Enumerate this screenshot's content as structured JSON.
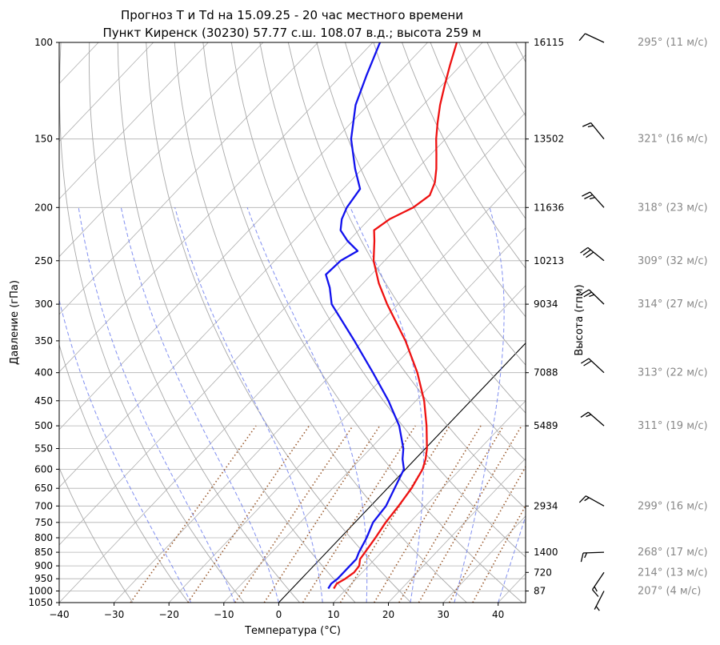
{
  "chart_data": {
    "type": "line",
    "title_line1": "Прогноз T и Td на 15.09.25 - 20 час местного времени",
    "title_line2": "Пункт Киренск (30230) 57.77 с.ш. 108.07 в.д.; высота 259 м",
    "xlabel": "Температура (°C)",
    "ylabel": "Давление (гПа)",
    "ylabel_right": "Высота (гпм)",
    "xlim": [
      -40,
      45
    ],
    "ylim": [
      1050,
      100
    ],
    "y_scale": "log",
    "x_ticks": [
      -40,
      -30,
      -20,
      -10,
      0,
      10,
      20,
      30,
      40
    ],
    "y_ticks": [
      100,
      150,
      200,
      250,
      300,
      350,
      400,
      450,
      500,
      550,
      600,
      650,
      700,
      750,
      800,
      850,
      900,
      950,
      1000,
      1050
    ],
    "height_ticks": [
      {
        "p": 100,
        "label": "16115"
      },
      {
        "p": 150,
        "label": "13502"
      },
      {
        "p": 200,
        "label": "11636"
      },
      {
        "p": 250,
        "label": "10213"
      },
      {
        "p": 300,
        "label": "9034"
      },
      {
        "p": 400,
        "label": "7088"
      },
      {
        "p": 500,
        "label": "5489"
      },
      {
        "p": 700,
        "label": "2934"
      },
      {
        "p": 850,
        "label": "1400"
      },
      {
        "p": 925,
        "label": "720"
      },
      {
        "p": 1000,
        "label": "87"
      }
    ],
    "grid": true,
    "series": [
      {
        "key": "temperature",
        "color": "#ee1111",
        "points": [
          [
            990,
            7.6
          ],
          [
            970,
            7.3
          ],
          [
            950,
            8.0
          ],
          [
            925,
            8.5
          ],
          [
            900,
            8.3
          ],
          [
            875,
            7.3
          ],
          [
            850,
            7.0
          ],
          [
            800,
            6.4
          ],
          [
            750,
            5.6
          ],
          [
            700,
            5.1
          ],
          [
            650,
            4.4
          ],
          [
            600,
            3.1
          ],
          [
            575,
            1.9
          ],
          [
            550,
            0.3
          ],
          [
            500,
            -3.7
          ],
          [
            450,
            -8.5
          ],
          [
            400,
            -14.6
          ],
          [
            350,
            -22.3
          ],
          [
            300,
            -32.0
          ],
          [
            275,
            -37.1
          ],
          [
            250,
            -42.0
          ],
          [
            230,
            -45.3
          ],
          [
            220,
            -47.2
          ],
          [
            210,
            -46.3
          ],
          [
            200,
            -44.0
          ],
          [
            190,
            -43.1
          ],
          [
            180,
            -44.4
          ],
          [
            170,
            -46.5
          ],
          [
            160,
            -49.0
          ],
          [
            150,
            -51.7
          ],
          [
            140,
            -54.3
          ],
          [
            130,
            -56.9
          ],
          [
            120,
            -59.4
          ],
          [
            110,
            -62.0
          ],
          [
            100,
            -64.7
          ]
        ]
      },
      {
        "key": "dewpoint",
        "color": "#1111ee",
        "points": [
          [
            990,
            6.6
          ],
          [
            970,
            6.3
          ],
          [
            950,
            6.6
          ],
          [
            925,
            6.6
          ],
          [
            900,
            6.6
          ],
          [
            875,
            6.6
          ],
          [
            850,
            5.9
          ],
          [
            800,
            4.8
          ],
          [
            750,
            3.3
          ],
          [
            700,
            2.8
          ],
          [
            650,
            1.3
          ],
          [
            600,
            -0.3
          ],
          [
            575,
            -2.3
          ],
          [
            550,
            -4.0
          ],
          [
            500,
            -8.7
          ],
          [
            450,
            -15.0
          ],
          [
            400,
            -22.7
          ],
          [
            350,
            -31.6
          ],
          [
            300,
            -42.1
          ],
          [
            280,
            -45.3
          ],
          [
            265,
            -48.3
          ],
          [
            250,
            -48.0
          ],
          [
            240,
            -46.6
          ],
          [
            230,
            -50.2
          ],
          [
            220,
            -53.3
          ],
          [
            210,
            -55.0
          ],
          [
            200,
            -56.1
          ],
          [
            185,
            -56.9
          ],
          [
            170,
            -61.3
          ],
          [
            150,
            -67.2
          ],
          [
            130,
            -72.3
          ],
          [
            115,
            -75.4
          ],
          [
            100,
            -78.7
          ]
        ]
      }
    ],
    "wind": [
      {
        "p": 100,
        "dir": 295,
        "speed": 11,
        "label": "295° (11 м/с)"
      },
      {
        "p": 150,
        "dir": 321,
        "speed": 16,
        "label": "321° (16 м/с)"
      },
      {
        "p": 200,
        "dir": 318,
        "speed": 23,
        "label": "318° (23 м/с)"
      },
      {
        "p": 250,
        "dir": 309,
        "speed": 32,
        "label": "309° (32 м/с)"
      },
      {
        "p": 300,
        "dir": 314,
        "speed": 27,
        "label": "314° (27 м/с)"
      },
      {
        "p": 400,
        "dir": 313,
        "speed": 22,
        "label": "313° (22 м/с)"
      },
      {
        "p": 500,
        "dir": 311,
        "speed": 19,
        "label": "311° (19 м/с)"
      },
      {
        "p": 700,
        "dir": 299,
        "speed": 16,
        "label": "299° (16 м/с)"
      },
      {
        "p": 850,
        "dir": 268,
        "speed": 17,
        "label": "268° (17 м/с)"
      },
      {
        "p": 925,
        "dir": 214,
        "speed": 13,
        "label": "214° (13 м/с)"
      },
      {
        "p": 1000,
        "dir": 207,
        "speed": 4,
        "label": "207° (4 м/с)"
      }
    ],
    "colors": {
      "dry_adiabat": "#a8a8a8",
      "moist_adiabat": "#6b7bef",
      "mixing_ratio": "#9a5a2e",
      "isotherm_zero": "#000000",
      "wind_label": "#888888"
    }
  }
}
